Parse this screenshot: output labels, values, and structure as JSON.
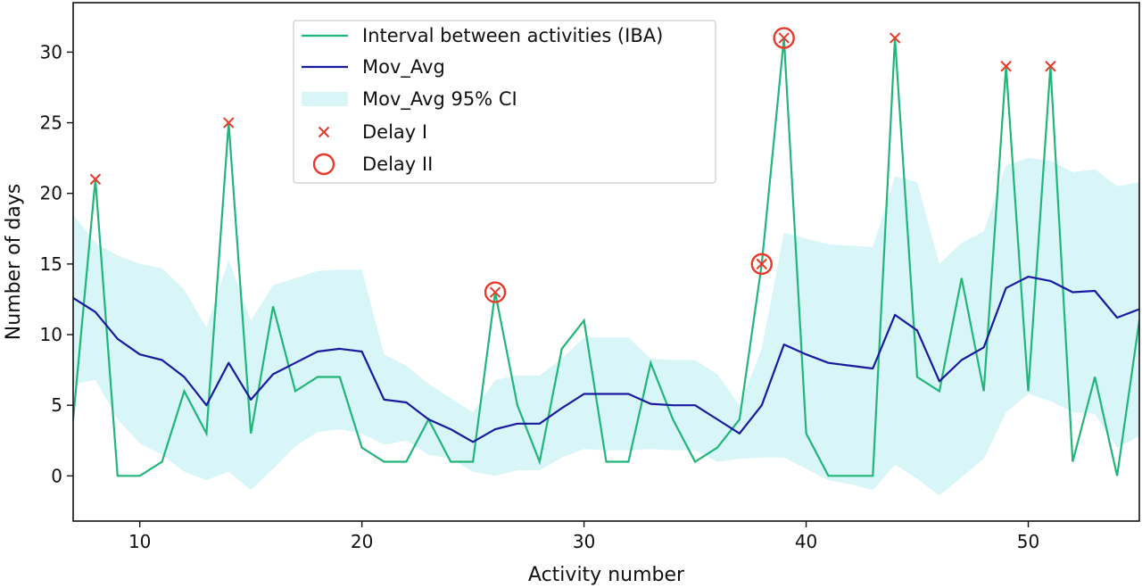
{
  "chart_data": {
    "type": "line",
    "xlabel": "Activity number",
    "ylabel": "Number of days",
    "xlim": [
      7,
      55
    ],
    "ylim": [
      -3.2,
      33.5
    ],
    "xticks": [
      10,
      20,
      30,
      40,
      50
    ],
    "yticks": [
      0,
      5,
      10,
      15,
      20,
      25,
      30
    ],
    "grid": false,
    "legend_position": "top-center",
    "colors": {
      "iba": "#22b57a",
      "mov_avg": "#1a1aa0",
      "ci": "#d8f5f7",
      "delay": "#e8392a"
    },
    "x": [
      7,
      8,
      9,
      10,
      11,
      12,
      13,
      14,
      15,
      16,
      17,
      18,
      19,
      20,
      21,
      22,
      23,
      24,
      25,
      26,
      27,
      28,
      29,
      30,
      31,
      32,
      33,
      34,
      35,
      36,
      37,
      38,
      39,
      40,
      41,
      42,
      43,
      44,
      45,
      46,
      47,
      48,
      49,
      50,
      51,
      52,
      53,
      54,
      55
    ],
    "series": [
      {
        "name": "Interval between activities (IBA)",
        "kind": "line",
        "values": [
          4,
          21,
          0,
          0,
          1,
          6,
          3,
          25,
          3,
          12,
          6,
          7,
          7,
          2,
          1,
          1,
          4,
          1,
          1,
          13,
          5,
          1,
          9,
          11,
          1,
          1,
          8,
          4,
          1,
          2,
          4,
          15,
          31,
          3,
          0,
          0,
          0,
          31,
          7,
          6,
          14,
          6,
          29,
          6,
          29,
          1,
          7,
          0,
          11
        ]
      },
      {
        "name": "Mov_Avg",
        "kind": "line",
        "values": [
          12.6,
          11.6,
          9.7,
          8.6,
          8.2,
          7.0,
          5.0,
          8.0,
          5.4,
          7.2,
          8.0,
          8.8,
          9.0,
          8.8,
          5.4,
          5.2,
          4.0,
          3.3,
          2.4,
          3.3,
          3.7,
          3.7,
          4.8,
          5.8,
          5.8,
          5.8,
          5.1,
          5.0,
          5.0,
          4.0,
          3.0,
          5.0,
          9.3,
          8.6,
          8.0,
          7.8,
          7.6,
          11.4,
          10.3,
          6.7,
          8.2,
          9.1,
          13.3,
          14.1,
          13.8,
          13.0,
          13.1,
          11.2,
          11.8
        ]
      },
      {
        "name": "Mov_Avg 95% CI",
        "kind": "band",
        "upper": [
          18.5,
          16.5,
          15.6,
          15.0,
          14.7,
          13.2,
          10.5,
          15.3,
          11.0,
          13.5,
          14.0,
          14.5,
          14.6,
          14.6,
          8.6,
          7.8,
          6.5,
          5.5,
          4.5,
          6.8,
          7.1,
          7.1,
          8.3,
          9.8,
          9.8,
          9.8,
          8.3,
          8.2,
          8.2,
          7.2,
          5.0,
          9.0,
          17.2,
          16.8,
          16.4,
          16.3,
          16.2,
          21.2,
          20.8,
          15.0,
          16.5,
          17.3,
          22.0,
          22.5,
          22.3,
          21.5,
          21.7,
          20.5,
          20.8
        ],
        "lower": [
          6.5,
          6.8,
          4.0,
          2.3,
          1.5,
          0.3,
          -0.3,
          0.3,
          -1.0,
          0.5,
          2.1,
          3.1,
          3.3,
          3.0,
          2.2,
          2.5,
          1.5,
          1.2,
          0.3,
          0.0,
          0.4,
          0.4,
          1.3,
          1.9,
          1.8,
          1.8,
          1.9,
          1.8,
          1.8,
          1.0,
          1.2,
          1.3,
          1.3,
          0.5,
          -0.3,
          -0.6,
          -1.0,
          0.8,
          -0.2,
          -1.4,
          -0.1,
          1.2,
          4.5,
          5.8,
          5.3,
          4.5,
          4.4,
          2.0,
          2.8
        ]
      },
      {
        "name": "Delay I",
        "kind": "marker-x",
        "points": [
          [
            8,
            21
          ],
          [
            14,
            25
          ],
          [
            26,
            13
          ],
          [
            38,
            15
          ],
          [
            39,
            31
          ],
          [
            44,
            31
          ],
          [
            49,
            29
          ],
          [
            51,
            29
          ]
        ]
      },
      {
        "name": "Delay II",
        "kind": "marker-circle",
        "points": [
          [
            26,
            13
          ],
          [
            38,
            15
          ],
          [
            39,
            31
          ]
        ]
      }
    ]
  }
}
